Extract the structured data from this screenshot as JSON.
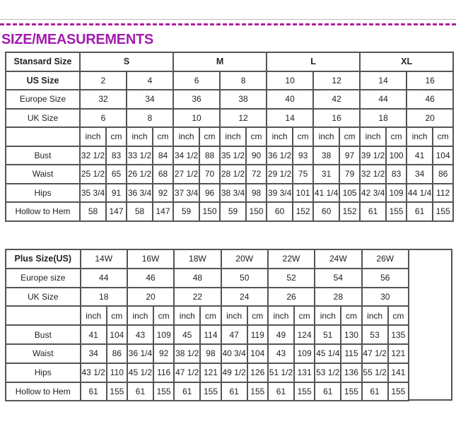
{
  "title": "SIZE/MEASUREMENTS",
  "colors": {
    "title": "#a21caf",
    "dash": "#b0209c",
    "border": "#555555"
  },
  "standard": {
    "header_label": "Stansard Size",
    "groups": [
      "S",
      "M",
      "L",
      "XL"
    ],
    "us_label": "US Size",
    "us": [
      "2",
      "4",
      "6",
      "8",
      "10",
      "12",
      "14",
      "16"
    ],
    "europe_label": "Europe Size",
    "europe": [
      "32",
      "34",
      "36",
      "38",
      "40",
      "42",
      "44",
      "46"
    ],
    "uk_label": "UK Size",
    "uk": [
      "6",
      "8",
      "10",
      "12",
      "14",
      "16",
      "18",
      "20"
    ],
    "units": [
      "inch",
      "cm"
    ],
    "rows": [
      {
        "label": "Bust",
        "values": [
          "32 1/2",
          "83",
          "33 1/2",
          "84",
          "34 1/2",
          "88",
          "35 1/2",
          "90",
          "36 1/2",
          "93",
          "38",
          "97",
          "39 1/2",
          "100",
          "41",
          "104"
        ]
      },
      {
        "label": "Waist",
        "values": [
          "25 1/2",
          "65",
          "26 1/2",
          "68",
          "27 1/2",
          "70",
          "28 1/2",
          "72",
          "29 1/2",
          "75",
          "31",
          "79",
          "32 1/2",
          "83",
          "34",
          "86"
        ]
      },
      {
        "label": "Hips",
        "values": [
          "35 3/4",
          "91",
          "36 3/4",
          "92",
          "37 3/4",
          "96",
          "38 3/4",
          "98",
          "39 3/4",
          "101",
          "41 1/4",
          "105",
          "42 3/4",
          "109",
          "44 1/4",
          "112"
        ]
      },
      {
        "label": "Hollow to Hem",
        "values": [
          "58",
          "147",
          "58",
          "147",
          "59",
          "150",
          "59",
          "150",
          "60",
          "152",
          "60",
          "152",
          "61",
          "155",
          "61",
          "155"
        ]
      }
    ]
  },
  "plus": {
    "header_label": "Plus Size(US)",
    "us": [
      "14W",
      "16W",
      "18W",
      "20W",
      "22W",
      "24W",
      "26W"
    ],
    "europe_label": "Europe size",
    "europe": [
      "44",
      "46",
      "48",
      "50",
      "52",
      "54",
      "56"
    ],
    "uk_label": "UK Size",
    "uk": [
      "18",
      "20",
      "22",
      "24",
      "26",
      "28",
      "30"
    ],
    "units": [
      "inch",
      "cm"
    ],
    "rows": [
      {
        "label": "Bust",
        "values": [
          "41",
          "104",
          "43",
          "109",
          "45",
          "114",
          "47",
          "119",
          "49",
          "124",
          "51",
          "130",
          "53",
          "135"
        ]
      },
      {
        "label": "Waist",
        "values": [
          "34",
          "86",
          "36 1/4",
          "92",
          "38 1/2",
          "98",
          "40 3/4",
          "104",
          "43",
          "109",
          "45 1/4",
          "115",
          "47 1/2",
          "121"
        ]
      },
      {
        "label": "Hips",
        "values": [
          "43 1/2",
          "110",
          "45 1/2",
          "116",
          "47 1/2",
          "121",
          "49 1/2",
          "126",
          "51 1/2",
          "131",
          "53 1/2",
          "136",
          "55 1/2",
          "141"
        ]
      },
      {
        "label": "Hollow to Hem",
        "values": [
          "61",
          "155",
          "61",
          "155",
          "61",
          "155",
          "61",
          "155",
          "61",
          "155",
          "61",
          "155",
          "61",
          "155"
        ]
      }
    ]
  }
}
